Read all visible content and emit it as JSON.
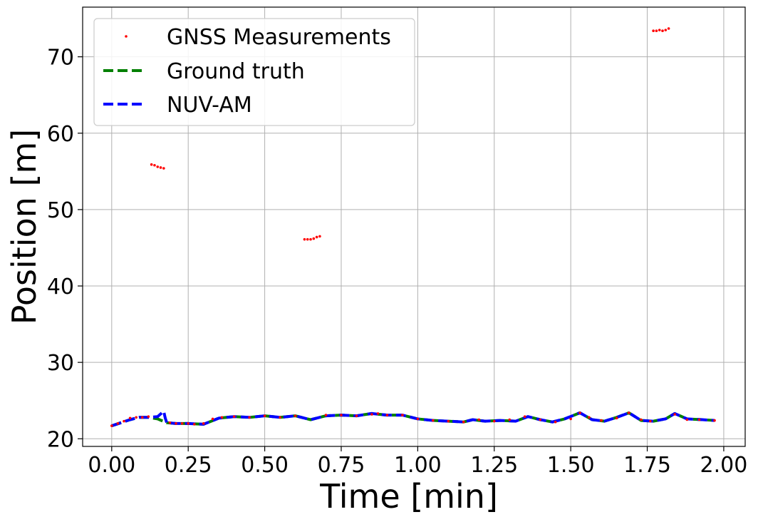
{
  "chart_data": {
    "type": "line",
    "xlabel": "Time [min]",
    "ylabel": "Position [m]",
    "xlim": [
      -0.095,
      2.07
    ],
    "ylim": [
      19.0,
      76.5
    ],
    "xticks": [
      0.0,
      0.25,
      0.5,
      0.75,
      1.0,
      1.25,
      1.5,
      1.75,
      2.0
    ],
    "xtick_labels": [
      "0.00",
      "0.25",
      "0.50",
      "0.75",
      "1.00",
      "1.25",
      "1.50",
      "1.75",
      "2.00"
    ],
    "yticks": [
      20,
      30,
      40,
      50,
      60,
      70
    ],
    "ytick_labels": [
      "20",
      "30",
      "40",
      "50",
      "60",
      "70"
    ],
    "grid": true,
    "legend_position": "top-left",
    "series": [
      {
        "name": "GNSS Measurements",
        "style": "points",
        "color": "#ff0000",
        "x": [
          0.0,
          0.02,
          0.04,
          0.06,
          0.08,
          0.1,
          0.12,
          0.13,
          0.14,
          0.15,
          0.16,
          0.17,
          0.19,
          0.21,
          0.23,
          0.25,
          0.27,
          0.3,
          0.33,
          0.36,
          0.4,
          0.45,
          0.5,
          0.55,
          0.6,
          0.63,
          0.64,
          0.65,
          0.66,
          0.67,
          0.68,
          0.7,
          0.75,
          0.8,
          0.85,
          0.87,
          0.9,
          0.95,
          1.0,
          1.05,
          1.1,
          1.15,
          1.2,
          1.25,
          1.3,
          1.35,
          1.4,
          1.45,
          1.5,
          1.53,
          1.56,
          1.6,
          1.65,
          1.69,
          1.73,
          1.76,
          1.77,
          1.78,
          1.79,
          1.8,
          1.81,
          1.82,
          1.84,
          1.88,
          1.92,
          1.97
        ],
        "y": [
          21.7,
          22.0,
          22.3,
          22.7,
          22.8,
          22.8,
          22.9,
          55.9,
          55.8,
          55.6,
          55.5,
          55.4,
          22.1,
          22.0,
          22.0,
          22.0,
          21.9,
          22.0,
          22.6,
          22.8,
          22.9,
          22.8,
          23.0,
          22.8,
          23.0,
          46.1,
          46.1,
          46.1,
          46.2,
          46.4,
          46.5,
          23.1,
          23.1,
          23.0,
          23.2,
          23.3,
          23.1,
          23.1,
          22.6,
          22.4,
          22.3,
          22.2,
          22.5,
          22.3,
          22.5,
          22.9,
          22.5,
          22.2,
          22.6,
          23.4,
          22.8,
          22.4,
          22.7,
          23.4,
          22.5,
          22.3,
          73.4,
          73.4,
          73.5,
          73.4,
          73.5,
          73.7,
          23.2,
          22.5,
          22.5,
          22.4
        ]
      },
      {
        "name": "Ground truth",
        "style": "dashed",
        "color": "#008000",
        "x": [
          0.0,
          0.03,
          0.06,
          0.09,
          0.12,
          0.15,
          0.18,
          0.21,
          0.25,
          0.3,
          0.35,
          0.4,
          0.45,
          0.5,
          0.55,
          0.6,
          0.65,
          0.7,
          0.75,
          0.8,
          0.85,
          0.9,
          0.95,
          1.0,
          1.05,
          1.1,
          1.15,
          1.18,
          1.22,
          1.27,
          1.32,
          1.36,
          1.4,
          1.44,
          1.48,
          1.53,
          1.57,
          1.61,
          1.65,
          1.69,
          1.73,
          1.77,
          1.81,
          1.84,
          1.88,
          1.93,
          1.97
        ],
        "y": [
          21.7,
          22.1,
          22.5,
          22.8,
          22.8,
          22.6,
          22.1,
          22.0,
          22.0,
          21.9,
          22.7,
          22.9,
          22.8,
          23.0,
          22.8,
          23.0,
          22.5,
          23.0,
          23.1,
          23.0,
          23.3,
          23.1,
          23.1,
          22.6,
          22.4,
          22.3,
          22.2,
          22.5,
          22.3,
          22.4,
          22.3,
          22.9,
          22.5,
          22.2,
          22.6,
          23.4,
          22.5,
          22.3,
          22.8,
          23.4,
          22.4,
          22.3,
          22.6,
          23.3,
          22.6,
          22.5,
          22.4
        ]
      },
      {
        "name": "NUV-AM",
        "style": "dashed",
        "color": "#0000ff",
        "x": [
          0.0,
          0.03,
          0.06,
          0.09,
          0.12,
          0.15,
          0.17,
          0.175,
          0.18,
          0.21,
          0.25,
          0.3,
          0.35,
          0.4,
          0.45,
          0.5,
          0.55,
          0.6,
          0.65,
          0.7,
          0.75,
          0.8,
          0.85,
          0.9,
          0.95,
          1.0,
          1.05,
          1.1,
          1.15,
          1.18,
          1.22,
          1.27,
          1.32,
          1.36,
          1.4,
          1.44,
          1.48,
          1.53,
          1.57,
          1.61,
          1.65,
          1.69,
          1.73,
          1.77,
          1.81,
          1.84,
          1.88,
          1.93,
          1.97
        ],
        "y": [
          21.7,
          22.1,
          22.5,
          22.8,
          22.8,
          22.9,
          23.6,
          22.7,
          22.1,
          22.0,
          22.0,
          21.9,
          22.7,
          22.9,
          22.8,
          23.0,
          22.8,
          23.0,
          22.5,
          23.0,
          23.1,
          23.0,
          23.3,
          23.1,
          23.1,
          22.6,
          22.4,
          22.3,
          22.2,
          22.5,
          22.3,
          22.4,
          22.3,
          22.9,
          22.5,
          22.2,
          22.6,
          23.4,
          22.5,
          22.3,
          22.8,
          23.4,
          22.4,
          22.3,
          22.6,
          23.3,
          22.6,
          22.5,
          22.4
        ]
      }
    ]
  }
}
